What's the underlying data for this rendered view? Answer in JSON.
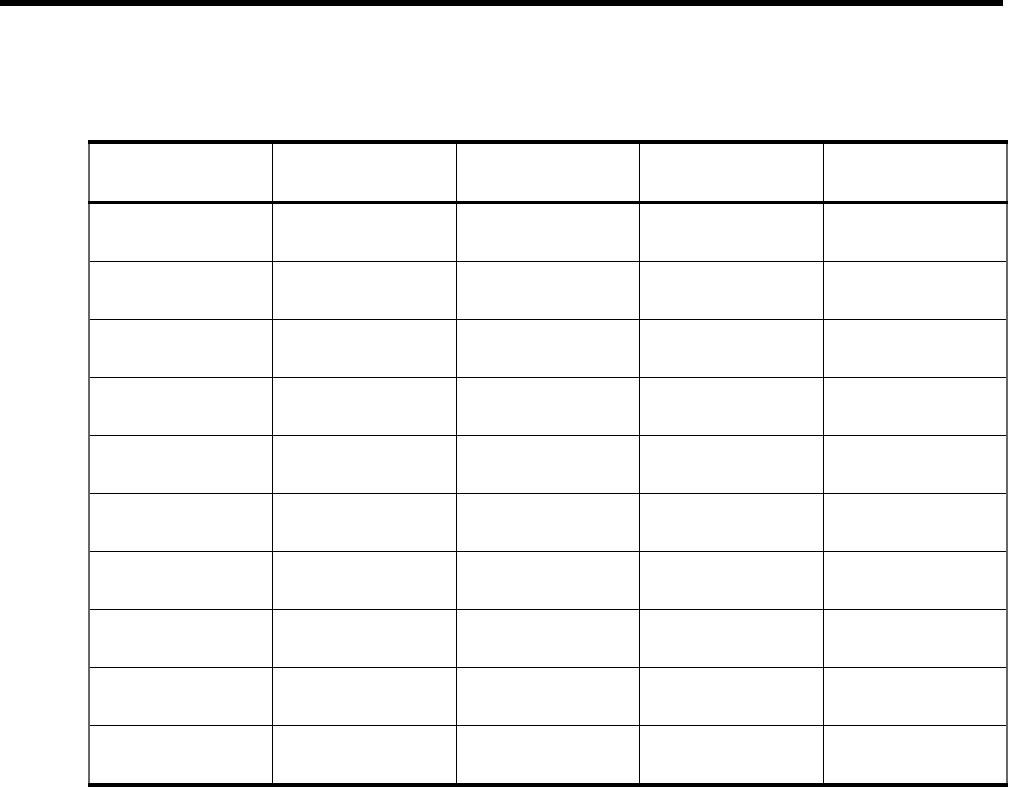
{
  "table": {
    "headers": [
      "",
      "",
      "",
      "",
      ""
    ],
    "rows": [
      [
        "",
        "",
        "",
        "",
        ""
      ],
      [
        "",
        "",
        "",
        "",
        ""
      ],
      [
        "",
        "",
        "",
        "",
        ""
      ],
      [
        "",
        "",
        "",
        "",
        ""
      ],
      [
        "",
        "",
        "",
        "",
        ""
      ],
      [
        "",
        "",
        "",
        "",
        ""
      ],
      [
        "",
        "",
        "",
        "",
        ""
      ],
      [
        "",
        "",
        "",
        "",
        ""
      ],
      [
        "",
        "",
        "",
        "",
        ""
      ],
      [
        "",
        "",
        "",
        "",
        ""
      ]
    ]
  }
}
